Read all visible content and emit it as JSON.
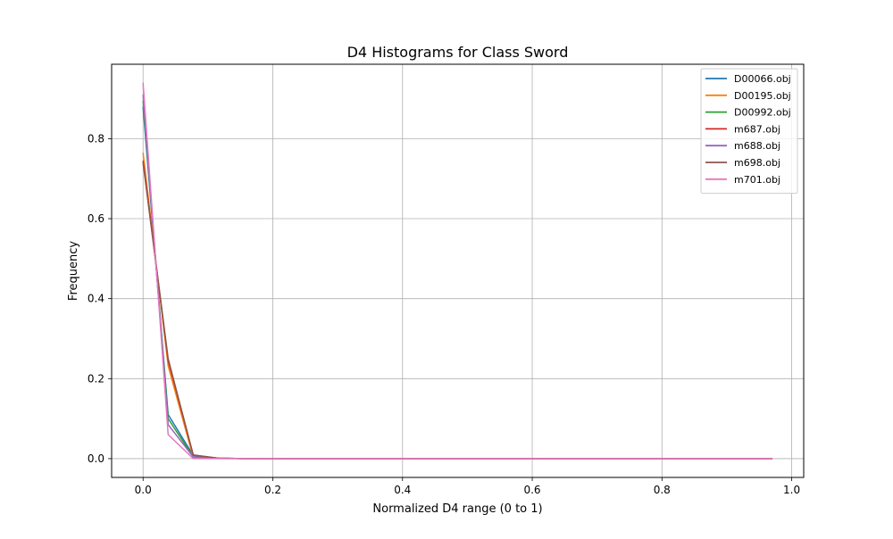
{
  "chart_data": {
    "type": "line",
    "title": "D4 Histograms for Class Sword",
    "xlabel": "Normalized D4 range (0 to 1)",
    "ylabel": "Frequency",
    "xlim": [
      -0.0485,
      1.0185
    ],
    "ylim": [
      -0.047,
      0.9861
    ],
    "xticks": [
      0.0,
      0.2,
      0.4,
      0.6,
      0.8,
      1.0
    ],
    "xtick_labels": [
      "0.0",
      "0.2",
      "0.4",
      "0.6",
      "0.8",
      "1.0"
    ],
    "yticks": [
      0.0,
      0.2,
      0.4,
      0.6,
      0.8
    ],
    "ytick_labels": [
      "0.0",
      "0.2",
      "0.4",
      "0.6",
      "0.8"
    ],
    "grid": true,
    "legend_position": "top-right",
    "x": [
      0.0,
      0.0387,
      0.0774,
      0.1161,
      0.1548,
      0.1935,
      0.2322,
      0.2709,
      0.3096,
      0.3483,
      0.387,
      0.4257,
      0.4644,
      0.5031,
      0.5418,
      0.5805,
      0.6192,
      0.6579,
      0.6966,
      0.7353,
      0.774,
      0.8127,
      0.8514,
      0.8901,
      0.9288,
      0.97
    ],
    "series": [
      {
        "name": "D00066.obj",
        "color": "#1f77b4",
        "values": [
          0.88,
          0.11,
          0.008,
          0.001,
          0,
          0,
          0,
          0,
          0,
          0,
          0,
          0,
          0,
          0,
          0,
          0,
          0,
          0,
          0,
          0,
          0,
          0,
          0,
          0,
          0,
          0
        ]
      },
      {
        "name": "D00195.obj",
        "color": "#ff7f0e",
        "values": [
          0.765,
          0.232,
          0.003,
          0,
          0,
          0,
          0,
          0,
          0,
          0,
          0,
          0,
          0,
          0,
          0,
          0,
          0,
          0,
          0,
          0,
          0,
          0,
          0,
          0,
          0,
          0
        ]
      },
      {
        "name": "D00992.obj",
        "color": "#2ca02c",
        "values": [
          0.895,
          0.1,
          0.004,
          0.001,
          0,
          0,
          0,
          0,
          0,
          0,
          0,
          0,
          0,
          0,
          0,
          0,
          0,
          0,
          0,
          0,
          0,
          0,
          0,
          0,
          0,
          0
        ]
      },
      {
        "name": "m687.obj",
        "color": "#d62728",
        "values": [
          0.745,
          0.245,
          0.009,
          0.001,
          0,
          0,
          0,
          0,
          0,
          0,
          0,
          0,
          0,
          0,
          0,
          0,
          0,
          0,
          0,
          0,
          0,
          0,
          0,
          0,
          0,
          0
        ]
      },
      {
        "name": "m688.obj",
        "color": "#9467bd",
        "values": [
          0.91,
          0.085,
          0.004,
          0.001,
          0,
          0,
          0,
          0,
          0,
          0,
          0,
          0,
          0,
          0,
          0,
          0,
          0,
          0,
          0,
          0,
          0,
          0,
          0,
          0,
          0,
          0
        ]
      },
      {
        "name": "m698.obj",
        "color": "#8c564b",
        "values": [
          0.74,
          0.25,
          0.009,
          0.001,
          0,
          0,
          0,
          0,
          0,
          0,
          0,
          0,
          0,
          0,
          0,
          0,
          0,
          0,
          0,
          0,
          0,
          0,
          0,
          0,
          0,
          0
        ]
      },
      {
        "name": "m701.obj",
        "color": "#e377c2",
        "values": [
          0.94,
          0.06,
          0,
          0,
          0,
          0,
          0,
          0,
          0,
          0,
          0,
          0,
          0,
          0,
          0,
          0,
          0,
          0,
          0,
          0,
          0,
          0,
          0,
          0,
          0,
          0
        ]
      }
    ]
  }
}
